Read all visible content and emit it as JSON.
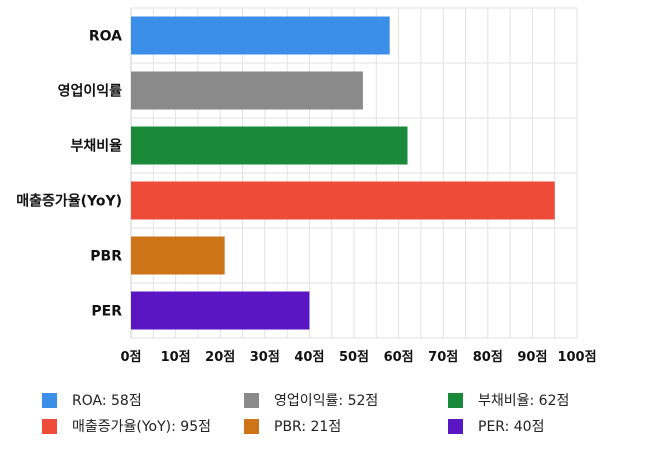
{
  "chart_data": {
    "type": "bar",
    "orientation": "horizontal",
    "categories": [
      "ROA",
      "영업이익률",
      "부채비율",
      "매출증가율(YoY)",
      "PBR",
      "PER"
    ],
    "values": [
      58,
      52,
      62,
      95,
      21,
      40
    ],
    "colors": [
      "#3b8fe8",
      "#8a8a8a",
      "#1a8a3a",
      "#ee4c38",
      "#cd7318",
      "#5a16c2"
    ],
    "x_ticks": [
      "0점",
      "10점",
      "20점",
      "30점",
      "40점",
      "50점",
      "60점",
      "70점",
      "80점",
      "90점",
      "100점"
    ],
    "xlim": [
      0,
      100
    ],
    "grid": true,
    "legend_position": "bottom",
    "legend": [
      {
        "label": "ROA: 58점",
        "color": "#3b8fe8"
      },
      {
        "label": "영업이익률: 52점",
        "color": "#8a8a8a"
      },
      {
        "label": "부채비율: 62점",
        "color": "#1a8a3a"
      },
      {
        "label": "매출증가율(YoY): 95점",
        "color": "#ee4c38"
      },
      {
        "label": "PBR: 21점",
        "color": "#cd7318"
      },
      {
        "label": "PER: 40점",
        "color": "#5a16c2"
      }
    ]
  }
}
